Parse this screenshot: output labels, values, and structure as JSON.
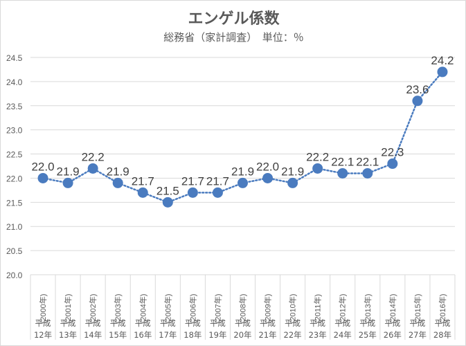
{
  "chart_data": {
    "type": "line",
    "title": "エンゲル係数",
    "subtitle": "総務省（家計調査）　単位：％",
    "categories_year": [
      "(2000年)",
      "(2001年)",
      "(2002年)",
      "(2003年)",
      "(2004年)",
      "(2005年)",
      "(2006年)",
      "(2007年)",
      "(2008年)",
      "(2009年)",
      "(2010年)",
      "(2011年)",
      "(2012年)",
      "(2013年)",
      "(2014年)",
      "(2015年)",
      "(2016年)"
    ],
    "categories_era": [
      "平成",
      "平成",
      "平成",
      "平成",
      "平成",
      "平成",
      "平成",
      "平成",
      "平成",
      "平成",
      "平成",
      "平成",
      "平成",
      "平成",
      "平成",
      "平成",
      "平成"
    ],
    "categories_era_year": [
      "12年",
      "13年",
      "14年",
      "15年",
      "16年",
      "17年",
      "18年",
      "19年",
      "20年",
      "21年",
      "22年",
      "23年",
      "24年",
      "25年",
      "26年",
      "27年",
      "28年"
    ],
    "values": [
      22.0,
      21.9,
      22.2,
      21.9,
      21.7,
      21.5,
      21.7,
      21.7,
      21.9,
      22.0,
      21.9,
      22.2,
      22.1,
      22.1,
      22.3,
      23.6,
      24.2
    ],
    "data_labels": [
      "22.0",
      "21.9",
      "22.2",
      "21.9",
      "21.7",
      "21.5",
      "21.7",
      "21.7",
      "21.9",
      "22.0",
      "21.9",
      "22.2",
      "22.1",
      "22.1",
      "22.3",
      "23.6",
      "24.2"
    ],
    "yticks": [
      "20.0",
      "20.5",
      "21.0",
      "21.5",
      "22.0",
      "22.5",
      "23.0",
      "23.5",
      "24.0",
      "24.5"
    ],
    "ylim": [
      20.0,
      24.5
    ],
    "grid": true,
    "legend": "none",
    "colors": {
      "series": "#4a7bbf",
      "grid": "#d9d9d9",
      "text": "#595959"
    }
  }
}
